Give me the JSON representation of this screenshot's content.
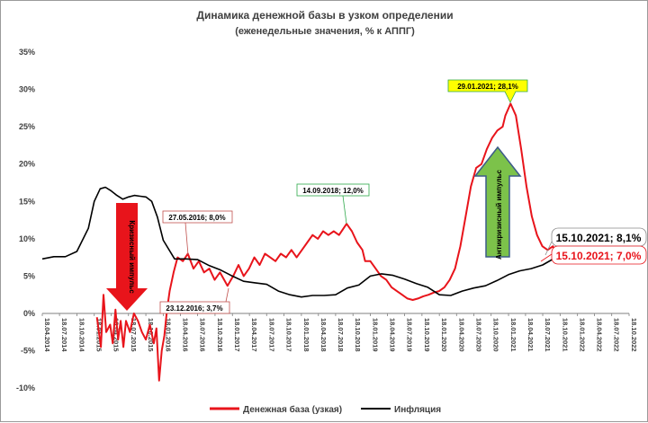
{
  "chart_data": {
    "type": "line",
    "title": "Динамика денежной базы в узком определении",
    "subtitle": "(еженедельные значения, % к АППГ)",
    "ylim": [
      -10,
      35
    ],
    "yticks": [
      "-10%",
      "-5%",
      "0%",
      "5%",
      "10%",
      "15%",
      "20%",
      "25%",
      "30%",
      "35%"
    ],
    "x_range": [
      "2014-04-18",
      "2022-10-18"
    ],
    "xticks": [
      "18.04.2014",
      "18.07.2014",
      "18.10.2014",
      "18.01.2015",
      "18.04.2015",
      "18.07.2015",
      "18.10.2015",
      "18.01.2016",
      "18.04.2016",
      "18.07.2016",
      "18.10.2016",
      "18.01.2017",
      "18.04.2017",
      "18.07.2017",
      "18.10.2017",
      "18.01.2018",
      "18.04.2018",
      "18.07.2018",
      "18.10.2018",
      "18.01.2019",
      "18.04.2019",
      "18.07.2019",
      "18.10.2019",
      "18.01.2020",
      "18.04.2020",
      "18.07.2020",
      "18.10.2020",
      "18.01.2021",
      "18.04.2021",
      "18.07.2021",
      "18.10.2021",
      "18.01.2022",
      "18.04.2022",
      "18.07.2022",
      "18.10.2022"
    ],
    "series": [
      {
        "name": "Денежная база (узкая)",
        "color": "#e8141b",
        "points": [
          [
            "2015-02-01",
            -0.5
          ],
          [
            "2015-02-22",
            -4.5
          ],
          [
            "2015-03-08",
            2.5
          ],
          [
            "2015-03-22",
            -2.5
          ],
          [
            "2015-04-12",
            -1.5
          ],
          [
            "2015-04-26",
            -4.0
          ],
          [
            "2015-05-10",
            0.5
          ],
          [
            "2015-05-24",
            -3.5
          ],
          [
            "2015-06-07",
            -1.0
          ],
          [
            "2015-06-21",
            -4.5
          ],
          [
            "2015-07-05",
            -1.0
          ],
          [
            "2015-07-26",
            -2.5
          ],
          [
            "2015-08-16",
            0.0
          ],
          [
            "2015-09-06",
            -1.0
          ],
          [
            "2015-09-27",
            -2.5
          ],
          [
            "2015-10-18",
            -3.5
          ],
          [
            "2015-11-08",
            -1.5
          ],
          [
            "2015-11-29",
            -4.0
          ],
          [
            "2015-12-13",
            -2.0
          ],
          [
            "2015-12-27",
            -9.0
          ],
          [
            "2016-01-10",
            -5.0
          ],
          [
            "2016-01-24",
            -3.0
          ],
          [
            "2016-02-07",
            0.5
          ],
          [
            "2016-02-21",
            3.0
          ],
          [
            "2016-03-13",
            5.5
          ],
          [
            "2016-04-03",
            7.5
          ],
          [
            "2016-05-01",
            7.0
          ],
          [
            "2016-05-27",
            8.0
          ],
          [
            "2016-06-26",
            6.0
          ],
          [
            "2016-07-24",
            7.0
          ],
          [
            "2016-08-21",
            5.5
          ],
          [
            "2016-09-18",
            6.0
          ],
          [
            "2016-10-16",
            4.5
          ],
          [
            "2016-11-13",
            5.5
          ],
          [
            "2016-12-23",
            3.7
          ],
          [
            "2017-01-22",
            5.0
          ],
          [
            "2017-02-19",
            6.5
          ],
          [
            "2017-03-19",
            5.0
          ],
          [
            "2017-04-16",
            6.0
          ],
          [
            "2017-05-14",
            7.5
          ],
          [
            "2017-06-11",
            6.5
          ],
          [
            "2017-07-09",
            8.0
          ],
          [
            "2017-08-06",
            7.5
          ],
          [
            "2017-09-03",
            7.0
          ],
          [
            "2017-10-01",
            8.0
          ],
          [
            "2017-10-29",
            7.5
          ],
          [
            "2017-11-26",
            8.5
          ],
          [
            "2017-12-24",
            7.5
          ],
          [
            "2018-01-21",
            8.5
          ],
          [
            "2018-02-18",
            9.5
          ],
          [
            "2018-03-18",
            10.5
          ],
          [
            "2018-04-15",
            10.0
          ],
          [
            "2018-05-13",
            11.0
          ],
          [
            "2018-06-10",
            10.5
          ],
          [
            "2018-07-08",
            11.0
          ],
          [
            "2018-08-05",
            10.5
          ],
          [
            "2018-09-14",
            12.0
          ],
          [
            "2018-10-12",
            11.0
          ],
          [
            "2018-11-09",
            9.5
          ],
          [
            "2018-12-07",
            8.5
          ],
          [
            "2018-12-21",
            7.0
          ],
          [
            "2019-01-18",
            7.0
          ],
          [
            "2019-02-15",
            6.0
          ],
          [
            "2019-03-15",
            5.0
          ],
          [
            "2019-04-12",
            4.5
          ],
          [
            "2019-05-10",
            3.5
          ],
          [
            "2019-06-07",
            3.0
          ],
          [
            "2019-07-05",
            2.5
          ],
          [
            "2019-08-02",
            2.0
          ],
          [
            "2019-08-30",
            1.8
          ],
          [
            "2019-09-27",
            2.0
          ],
          [
            "2019-10-25",
            2.3
          ],
          [
            "2019-11-22",
            2.5
          ],
          [
            "2019-12-20",
            2.8
          ],
          [
            "2020-01-17",
            3.0
          ],
          [
            "2020-02-14",
            3.5
          ],
          [
            "2020-03-13",
            4.5
          ],
          [
            "2020-04-10",
            6.0
          ],
          [
            "2020-05-08",
            9.0
          ],
          [
            "2020-06-05",
            13.0
          ],
          [
            "2020-07-03",
            17.0
          ],
          [
            "2020-07-31",
            19.5
          ],
          [
            "2020-08-28",
            20.0
          ],
          [
            "2020-09-25",
            22.0
          ],
          [
            "2020-10-23",
            23.5
          ],
          [
            "2020-11-20",
            24.5
          ],
          [
            "2020-12-18",
            25.0
          ],
          [
            "2021-01-01",
            26.5
          ],
          [
            "2021-01-29",
            28.1
          ],
          [
            "2021-02-26",
            26.5
          ],
          [
            "2021-03-26",
            22.0
          ],
          [
            "2021-04-23",
            17.0
          ],
          [
            "2021-05-21",
            13.0
          ],
          [
            "2021-06-18",
            10.5
          ],
          [
            "2021-07-16",
            9.0
          ],
          [
            "2021-08-13",
            8.5
          ],
          [
            "2021-09-10",
            9.0
          ],
          [
            "2021-10-15",
            7.0
          ]
        ]
      },
      {
        "name": "Инфляция",
        "color": "#000000",
        "points": [
          [
            "2014-04-18",
            7.3
          ],
          [
            "2014-06-18",
            7.6
          ],
          [
            "2014-08-18",
            7.6
          ],
          [
            "2014-10-18",
            8.3
          ],
          [
            "2014-12-18",
            11.4
          ],
          [
            "2015-01-18",
            15.0
          ],
          [
            "2015-02-18",
            16.7
          ],
          [
            "2015-03-18",
            16.9
          ],
          [
            "2015-04-18",
            16.4
          ],
          [
            "2015-05-18",
            15.8
          ],
          [
            "2015-06-18",
            15.3
          ],
          [
            "2015-07-18",
            15.6
          ],
          [
            "2015-08-18",
            15.8
          ],
          [
            "2015-09-18",
            15.7
          ],
          [
            "2015-10-18",
            15.6
          ],
          [
            "2015-11-18",
            15.0
          ],
          [
            "2015-12-18",
            12.9
          ],
          [
            "2016-01-18",
            9.8
          ],
          [
            "2016-03-18",
            7.3
          ],
          [
            "2016-05-18",
            7.3
          ],
          [
            "2016-07-18",
            7.2
          ],
          [
            "2016-09-18",
            6.4
          ],
          [
            "2016-11-18",
            5.8
          ],
          [
            "2017-01-18",
            5.0
          ],
          [
            "2017-03-18",
            4.3
          ],
          [
            "2017-05-18",
            4.1
          ],
          [
            "2017-07-18",
            3.9
          ],
          [
            "2017-09-18",
            3.0
          ],
          [
            "2017-11-18",
            2.5
          ],
          [
            "2018-01-18",
            2.2
          ],
          [
            "2018-03-18",
            2.4
          ],
          [
            "2018-05-18",
            2.4
          ],
          [
            "2018-07-18",
            2.5
          ],
          [
            "2018-09-18",
            3.4
          ],
          [
            "2018-11-18",
            3.8
          ],
          [
            "2019-01-18",
            5.0
          ],
          [
            "2019-03-18",
            5.3
          ],
          [
            "2019-05-18",
            5.1
          ],
          [
            "2019-07-18",
            4.6
          ],
          [
            "2019-09-18",
            4.0
          ],
          [
            "2019-11-18",
            3.5
          ],
          [
            "2020-01-18",
            2.5
          ],
          [
            "2020-03-18",
            2.4
          ],
          [
            "2020-05-18",
            3.0
          ],
          [
            "2020-07-18",
            3.4
          ],
          [
            "2020-09-18",
            3.7
          ],
          [
            "2020-11-18",
            4.4
          ],
          [
            "2021-01-18",
            5.2
          ],
          [
            "2021-03-18",
            5.7
          ],
          [
            "2021-05-18",
            6.0
          ],
          [
            "2021-07-18",
            6.5
          ],
          [
            "2021-09-18",
            7.4
          ],
          [
            "2021-10-15",
            8.1
          ]
        ]
      }
    ],
    "annotations": [
      {
        "text": "27.05.2016; 8,0%",
        "color": "#c0504d"
      },
      {
        "text": "23.12.2016; 3,7%",
        "color": "#c0504d"
      },
      {
        "text": "14.09.2018; 12,0%",
        "color": "#2da84a"
      },
      {
        "text": "29.01.2021; 28,1%",
        "color": "#2da84a"
      },
      {
        "text": "15.10.2021; 8,1%",
        "color": "#000000"
      },
      {
        "text": "15.10.2021; 7,0%",
        "color": "#e8141b"
      }
    ],
    "arrows": [
      {
        "text": "Кризисный импульс",
        "color": "#e8141b"
      },
      {
        "text": "Антикризисный импульс",
        "color": "#7cc24a"
      }
    ],
    "legend": {
      "position": "bottom",
      "items": [
        "Денежная база (узкая)",
        "Инфляция"
      ]
    },
    "grid": false
  }
}
